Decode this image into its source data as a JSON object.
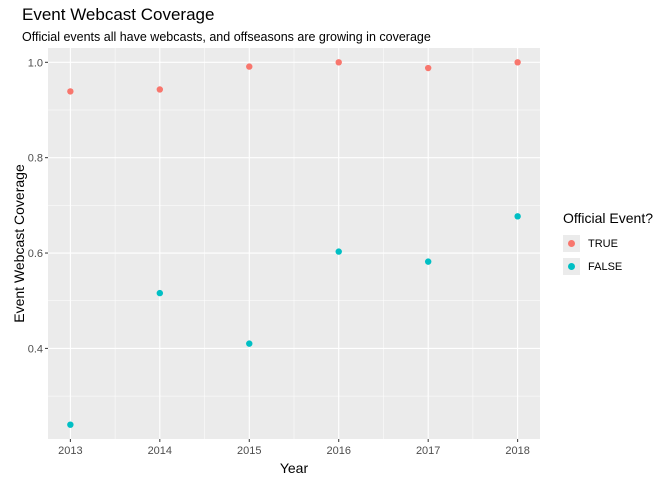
{
  "chart_data": {
    "type": "scatter",
    "title": "Event Webcast Coverage",
    "subtitle": "Official events all have webcasts, and offseasons are growing in coverage",
    "xlabel": "Year",
    "ylabel": "Event Webcast Coverage",
    "x": [
      2013,
      2014,
      2015,
      2016,
      2017,
      2018
    ],
    "xlim": [
      2012.75,
      2018.25
    ],
    "ylim": [
      0.21,
      1.03
    ],
    "yticks": [
      0.4,
      0.6,
      0.8,
      1.0
    ],
    "ytick_labels": [
      "0.4",
      "0.6",
      "0.8",
      "1.0"
    ],
    "grid": true,
    "legend": {
      "title": "Official Event?",
      "position": "right"
    },
    "series": [
      {
        "name": "TRUE",
        "color": "#F8766D",
        "values": [
          0.939,
          0.943,
          0.991,
          1.0,
          0.988,
          1.0
        ]
      },
      {
        "name": "FALSE",
        "color": "#00BFC4",
        "values": [
          0.24,
          0.516,
          0.41,
          0.603,
          0.582,
          0.677
        ]
      }
    ]
  }
}
